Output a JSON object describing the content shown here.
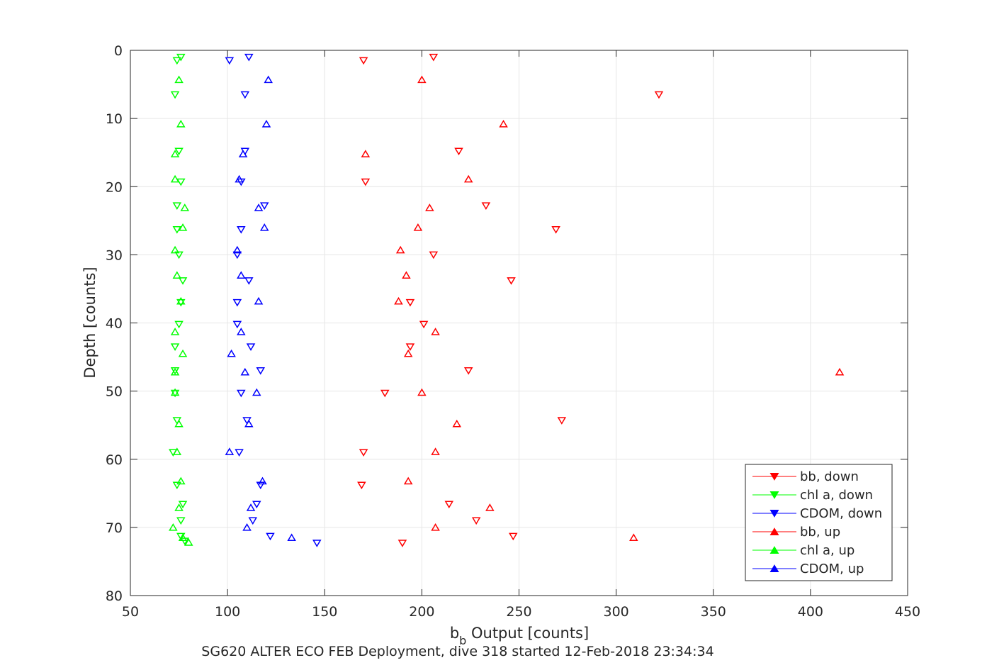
{
  "chart_data": {
    "type": "scatter",
    "title": "SG620 ALTER ECO FEB Deployment, dive 318 started 12-Feb-2018 23:34:34",
    "xlabel_main": "b",
    "xlabel_sub": "b",
    "xlabel_rest": " Output [counts]",
    "ylabel": "Depth [counts]",
    "xlim": [
      50,
      450
    ],
    "ylim": [
      0,
      80
    ],
    "y_reversed": true,
    "xticks": [
      50,
      100,
      150,
      200,
      250,
      300,
      350,
      400,
      450
    ],
    "yticks": [
      0,
      10,
      20,
      30,
      40,
      50,
      60,
      70,
      80
    ],
    "grid": true,
    "legend_position": "bottom-right",
    "series": [
      {
        "name": "bb, down",
        "color": "#ff0000",
        "marker": "triangle-down",
        "points": [
          [
            206,
            1
          ],
          [
            170,
            1.5
          ],
          [
            322,
            6.5
          ],
          [
            219,
            14.8
          ],
          [
            171,
            19.3
          ],
          [
            233,
            22.8
          ],
          [
            269,
            26.3
          ],
          [
            206,
            30
          ],
          [
            246,
            33.8
          ],
          [
            194,
            37
          ],
          [
            201,
            40.2
          ],
          [
            194,
            43.5
          ],
          [
            224,
            47
          ],
          [
            181,
            50.3
          ],
          [
            272,
            54.3
          ],
          [
            170,
            59
          ],
          [
            169,
            63.8
          ],
          [
            214,
            66.6
          ],
          [
            228,
            69
          ],
          [
            247,
            71.3
          ],
          [
            190,
            72.3
          ]
        ]
      },
      {
        "name": "chl a, down",
        "color": "#00ff00",
        "marker": "triangle-down",
        "points": [
          [
            76,
            1
          ],
          [
            74,
            1.5
          ],
          [
            73,
            6.5
          ],
          [
            75,
            14.8
          ],
          [
            76,
            19.3
          ],
          [
            74,
            22.8
          ],
          [
            74,
            26.3
          ],
          [
            75,
            30
          ],
          [
            77,
            33.8
          ],
          [
            76,
            37
          ],
          [
            75,
            40.2
          ],
          [
            73,
            43.5
          ],
          [
            73,
            47
          ],
          [
            73,
            50.3
          ],
          [
            74,
            54.3
          ],
          [
            72,
            59
          ],
          [
            74,
            63.8
          ],
          [
            77,
            66.6
          ],
          [
            76,
            69
          ],
          [
            76,
            71.3
          ],
          [
            78,
            72
          ]
        ]
      },
      {
        "name": "CDOM, down",
        "color": "#0000ff",
        "marker": "triangle-down",
        "points": [
          [
            111,
            1
          ],
          [
            101,
            1.5
          ],
          [
            109,
            6.5
          ],
          [
            109,
            14.8
          ],
          [
            107,
            19.3
          ],
          [
            119,
            22.8
          ],
          [
            107,
            26.3
          ],
          [
            105,
            30
          ],
          [
            111,
            33.8
          ],
          [
            105,
            37
          ],
          [
            105,
            40.2
          ],
          [
            112,
            43.5
          ],
          [
            117,
            47
          ],
          [
            107,
            50.3
          ],
          [
            110,
            54.3
          ],
          [
            106,
            59
          ],
          [
            117,
            63.8
          ],
          [
            115,
            66.6
          ],
          [
            113,
            69
          ],
          [
            122,
            71.3
          ],
          [
            146,
            72.3
          ]
        ]
      },
      {
        "name": "bb, up",
        "color": "#ff0000",
        "marker": "triangle-up",
        "points": [
          [
            200,
            4.3
          ],
          [
            242,
            10.8
          ],
          [
            171,
            15.2
          ],
          [
            224,
            18.9
          ],
          [
            204,
            23.1
          ],
          [
            198,
            26
          ],
          [
            189,
            29.3
          ],
          [
            192,
            33
          ],
          [
            188,
            36.8
          ],
          [
            207,
            41.3
          ],
          [
            193,
            44.5
          ],
          [
            415,
            47.2
          ],
          [
            200,
            50.2
          ],
          [
            218,
            54.8
          ],
          [
            207,
            58.9
          ],
          [
            193,
            63.2
          ],
          [
            235,
            67.1
          ],
          [
            207,
            70
          ],
          [
            309,
            71.5
          ]
        ]
      },
      {
        "name": "chl a, up",
        "color": "#00ff00",
        "marker": "triangle-up",
        "points": [
          [
            75,
            4.3
          ],
          [
            76,
            10.8
          ],
          [
            73,
            15.2
          ],
          [
            73,
            18.9
          ],
          [
            78,
            23.1
          ],
          [
            77,
            26
          ],
          [
            73,
            29.3
          ],
          [
            74,
            33
          ],
          [
            76,
            36.8
          ],
          [
            73,
            41.3
          ],
          [
            77,
            44.5
          ],
          [
            73,
            47.2
          ],
          [
            73,
            50.2
          ],
          [
            75,
            54.8
          ],
          [
            74,
            58.9
          ],
          [
            76,
            63.2
          ],
          [
            75,
            67.1
          ],
          [
            72,
            70
          ],
          [
            77,
            71.5
          ],
          [
            80,
            72.2
          ]
        ]
      },
      {
        "name": "CDOM, up",
        "color": "#0000ff",
        "marker": "triangle-up",
        "points": [
          [
            121,
            4.3
          ],
          [
            120,
            10.8
          ],
          [
            108,
            15.2
          ],
          [
            106,
            18.9
          ],
          [
            116,
            23.1
          ],
          [
            119,
            26
          ],
          [
            105,
            29.3
          ],
          [
            107,
            33
          ],
          [
            116,
            36.8
          ],
          [
            107,
            41.3
          ],
          [
            102,
            44.5
          ],
          [
            109,
            47.2
          ],
          [
            115,
            50.2
          ],
          [
            111,
            54.8
          ],
          [
            101,
            58.9
          ],
          [
            118,
            63.2
          ],
          [
            112,
            67.1
          ],
          [
            110,
            70
          ],
          [
            133,
            71.5
          ]
        ]
      }
    ]
  }
}
